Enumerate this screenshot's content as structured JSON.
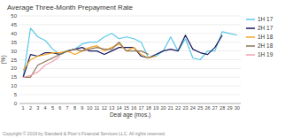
{
  "chart_data": {
    "type": "line",
    "title": "Average Three-Month Prepayment Rate",
    "x_label": "Deal age (mos.)",
    "y_label": "(%)",
    "annotations": [
      "Copyright © 2019 by Standard & Poor’s Financial Services LLC. All rights reserved."
    ],
    "x": [
      1,
      2,
      3,
      4,
      5,
      6,
      7,
      8,
      9,
      10,
      11,
      12,
      13,
      14,
      15,
      16,
      17,
      18,
      19,
      20,
      21,
      22,
      23,
      24,
      25,
      26,
      27,
      28,
      29,
      30
    ],
    "series": [
      {
        "name": "1H 17",
        "color": "#5bc8e8",
        "values": [
          15,
          43,
          38,
          36,
          31,
          28,
          30,
          31,
          34,
          35,
          35,
          38,
          40,
          37,
          38,
          37,
          35,
          26,
          27,
          30,
          38,
          30,
          37,
          26,
          25,
          30,
          30,
          41,
          40,
          39
        ]
      },
      {
        "name": "2H 17",
        "color": "#1a1a5e",
        "values": [
          15,
          28,
          27,
          29,
          29,
          28,
          30,
          31,
          32,
          30,
          30,
          28,
          30,
          32,
          32,
          32,
          27,
          26,
          28,
          30,
          31,
          30,
          39,
          31,
          29,
          28,
          32,
          39,
          null,
          null
        ]
      },
      {
        "name": "1H 18",
        "color": "#f5a623",
        "values": [
          19,
          25,
          27,
          28,
          29,
          29,
          30,
          28,
          30,
          32,
          33,
          30,
          32,
          34,
          30,
          32,
          28,
          26,
          27,
          null,
          null,
          null,
          null,
          null,
          null,
          null,
          null,
          null,
          null,
          null
        ]
      },
      {
        "name": "2H 18",
        "color": "#8b7355",
        "values": [
          15,
          15,
          22,
          24,
          26,
          28,
          30,
          31,
          30,
          31,
          32,
          31,
          31,
          35,
          30,
          30,
          30,
          28,
          null,
          null,
          null,
          null,
          null,
          null,
          null,
          null,
          null,
          null,
          null,
          null
        ]
      },
      {
        "name": "1H 19",
        "color": "#f2a0b0",
        "values": [
          15,
          16,
          18,
          22,
          24,
          27,
          null,
          null,
          null,
          null,
          null,
          null,
          null,
          null,
          null,
          null,
          null,
          null,
          null,
          null,
          null,
          null,
          null,
          null,
          null,
          null,
          null,
          null,
          null,
          null
        ]
      }
    ],
    "xlim": [
      0.5,
      30.5
    ],
    "xticks": [
      1,
      2,
      3,
      4,
      5,
      6,
      7,
      8,
      9,
      10,
      11,
      12,
      13,
      14,
      15,
      16,
      17,
      18,
      19,
      20,
      21,
      22,
      23,
      24,
      25,
      26,
      27,
      28,
      29,
      30
    ],
    "ylim": [
      0,
      50
    ],
    "yticks": [
      0,
      5,
      10,
      15,
      20,
      25,
      30,
      35,
      40,
      45,
      50
    ],
    "grid": true,
    "legend": "right"
  }
}
